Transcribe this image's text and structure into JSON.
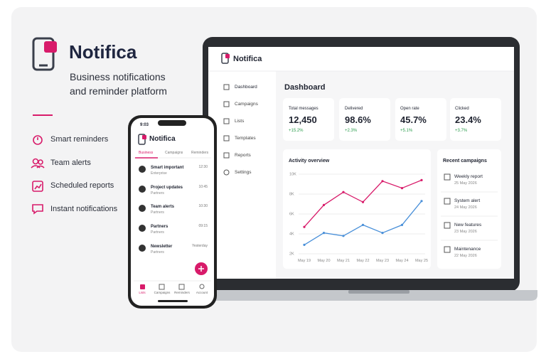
{
  "brand": {
    "name": "Notifica",
    "tagline": "Business notifications and reminder platform"
  },
  "features": [
    "Smart reminders",
    "Team alerts",
    "Scheduled reports",
    "Instant notifications"
  ],
  "laptop": {
    "app_name": "Notifica",
    "nav": [
      "Dashboard",
      "Campaigns",
      "Lists",
      "Templates",
      "Reports",
      "Settings"
    ],
    "page_title": "Dashboard",
    "stats": [
      {
        "label": "Total messages",
        "value": "12,450",
        "change": "+15.2%"
      },
      {
        "label": "Delivered",
        "value": "98.6%",
        "change": "+2.3%"
      },
      {
        "label": "Open rate",
        "value": "45.7%",
        "change": "+5.1%"
      },
      {
        "label": "Clicked",
        "value": "23.4%",
        "change": "+3.7%"
      }
    ],
    "chart": {
      "type": "line",
      "title": "Activity overview",
      "categories": [
        "May 19",
        "May 20",
        "May 21",
        "May 22",
        "May 23",
        "May 24",
        "May 25"
      ],
      "series": [
        {
          "color": "#d81b6a",
          "values": [
            4700,
            6900,
            8200,
            7200,
            9300,
            8600,
            9400
          ]
        },
        {
          "color": "#4a90d9",
          "values": [
            2900,
            4100,
            3800,
            4900,
            4100,
            4900,
            7300
          ]
        }
      ],
      "ylim": [
        2000,
        10000
      ],
      "yticks": [
        {
          "value": 2000,
          "label": "2K"
        },
        {
          "value": 4000,
          "label": "4K"
        },
        {
          "value": 6000,
          "label": "6K"
        },
        {
          "value": 8000,
          "label": "8K"
        },
        {
          "value": 10000,
          "label": "10K"
        }
      ]
    },
    "recent": {
      "title": "Recent campaigns",
      "items": [
        {
          "name": "Weekly report",
          "date": "25 May 2026"
        },
        {
          "name": "System alert",
          "date": "24 May 2026"
        },
        {
          "name": "New features",
          "date": "23 May 2026"
        },
        {
          "name": "Maintenance",
          "date": "22 May 2026"
        }
      ]
    }
  },
  "phone": {
    "time": "9:03",
    "app_name": "Notifica",
    "tabs": [
      "Business",
      "Campaigns",
      "Reminders"
    ],
    "messages": [
      {
        "title": "Smart important",
        "subtitle": "Enterprise",
        "time": "12:30"
      },
      {
        "title": "Project updates",
        "subtitle": "Partners",
        "time": "10:45"
      },
      {
        "title": "Team alerts",
        "subtitle": "Partners",
        "time": "10:30"
      },
      {
        "title": "Partners",
        "subtitle": "Partners",
        "time": "09:15"
      },
      {
        "title": "Newsletter",
        "subtitle": "Partners",
        "time": "Yesterday"
      }
    ],
    "bottom_nav": [
      "Lists",
      "Campaigns",
      "Reminders",
      "Account"
    ]
  }
}
